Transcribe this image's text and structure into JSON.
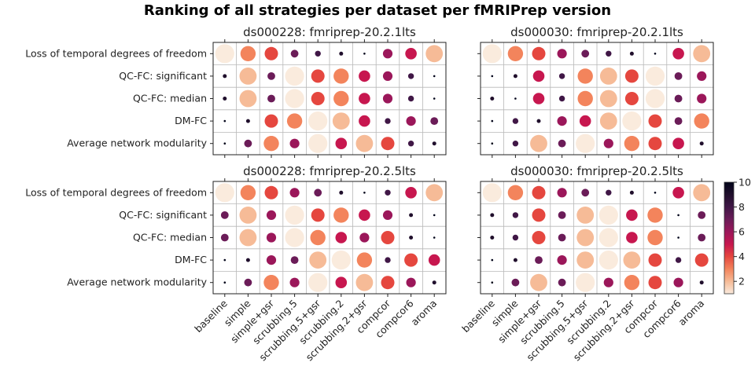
{
  "title": "Ranking of all strategies per dataset per fMRIPrep version",
  "colorbar": {
    "ticks": [
      2,
      4,
      6,
      8,
      10
    ],
    "range": [
      1,
      10
    ]
  },
  "chart_data": [
    {
      "type": "heatmap",
      "title": "ds000228: fmriprep-20.2.1lts",
      "strategies": [
        "baseline",
        "simple",
        "simple+gsr",
        "scrubbing.5",
        "scrubbing.5+gsr",
        "scrubbing.2",
        "scrubbing.2+gsr",
        "compcor",
        "compcor6",
        "aroma"
      ],
      "metrics": [
        "Loss of temporal degrees of freedom",
        "QC-FC: significant",
        "QC-FC: median",
        "DM-FC",
        "Average network modularity"
      ],
      "ranks": [
        [
          1,
          3,
          4,
          7,
          8,
          9,
          10,
          6,
          5,
          2
        ],
        [
          9,
          2,
          7,
          1,
          4,
          3,
          5,
          6,
          8,
          10
        ],
        [
          9,
          2,
          7,
          1,
          4,
          3,
          5,
          6,
          8,
          10
        ],
        [
          10,
          9,
          4,
          3,
          1,
          2,
          5,
          8,
          6,
          7
        ],
        [
          10,
          7,
          3,
          6,
          1,
          5,
          2,
          4,
          8,
          9
        ]
      ],
      "ylabels_visible": true,
      "xlabels_visible": false
    },
    {
      "type": "heatmap",
      "title": "ds000030: fmriprep-20.2.1lts",
      "strategies": [
        "baseline",
        "simple",
        "simple+gsr",
        "scrubbing.5",
        "scrubbing.5+gsr",
        "scrubbing.2",
        "scrubbing.2+gsr",
        "compcor",
        "compcor6",
        "aroma"
      ],
      "metrics": [
        "Loss of temporal degrees of freedom",
        "QC-FC: significant",
        "QC-FC: median",
        "DM-FC",
        "Average network modularity"
      ],
      "ranks": [
        [
          1,
          3,
          4,
          6,
          7,
          8,
          9,
          10,
          5,
          2
        ],
        [
          10,
          9,
          5,
          8,
          3,
          2,
          4,
          1,
          7,
          6
        ],
        [
          9,
          10,
          5,
          8,
          3,
          2,
          4,
          1,
          7,
          6
        ],
        [
          10,
          8,
          9,
          6,
          5,
          2,
          1,
          4,
          7,
          3
        ],
        [
          10,
          8,
          2,
          7,
          1,
          6,
          3,
          4,
          5,
          9
        ]
      ],
      "ylabels_visible": false,
      "xlabels_visible": false
    },
    {
      "type": "heatmap",
      "title": "ds000228: fmriprep-20.2.5lts",
      "strategies": [
        "baseline",
        "simple",
        "simple+gsr",
        "scrubbing.5",
        "scrubbing.5+gsr",
        "scrubbing.2",
        "scrubbing.2+gsr",
        "compcor",
        "compcor6",
        "aroma"
      ],
      "metrics": [
        "Loss of temporal degrees of freedom",
        "QC-FC: significant",
        "QC-FC: median",
        "DM-FC",
        "Average network modularity"
      ],
      "ranks": [
        [
          1,
          3,
          4,
          6,
          7,
          9,
          10,
          8,
          5,
          2
        ],
        [
          7,
          2,
          6,
          1,
          4,
          3,
          5,
          6,
          9,
          10
        ],
        [
          7,
          2,
          6,
          1,
          3,
          5,
          6,
          4,
          9,
          10
        ],
        [
          10,
          9,
          6,
          7,
          2,
          1,
          3,
          8,
          4,
          5
        ],
        [
          10,
          7,
          3,
          6,
          1,
          5,
          2,
          4,
          6,
          9
        ]
      ],
      "ylabels_visible": true,
      "xlabels_visible": true
    },
    {
      "type": "heatmap",
      "title": "ds000030: fmriprep-20.2.5lts",
      "strategies": [
        "baseline",
        "simple",
        "simple+gsr",
        "scrubbing.5",
        "scrubbing.5+gsr",
        "scrubbing.2",
        "scrubbing.2+gsr",
        "compcor",
        "compcor6",
        "aroma"
      ],
      "metrics": [
        "Loss of temporal degrees of freedom",
        "QC-FC: significant",
        "QC-FC: median",
        "DM-FC",
        "Average network modularity"
      ],
      "ranks": [
        [
          1,
          3,
          4,
          6,
          7,
          8,
          9,
          10,
          5,
          2
        ],
        [
          9,
          8,
          4,
          7,
          2,
          1,
          5,
          3,
          10,
          7
        ],
        [
          9,
          8,
          4,
          7,
          2,
          1,
          5,
          3,
          10,
          7
        ],
        [
          10,
          9,
          7,
          6,
          2,
          1,
          2,
          4,
          8,
          4
        ],
        [
          10,
          7,
          2,
          7,
          1,
          6,
          3,
          4,
          6,
          9
        ]
      ],
      "ylabels_visible": false,
      "xlabels_visible": true
    }
  ]
}
